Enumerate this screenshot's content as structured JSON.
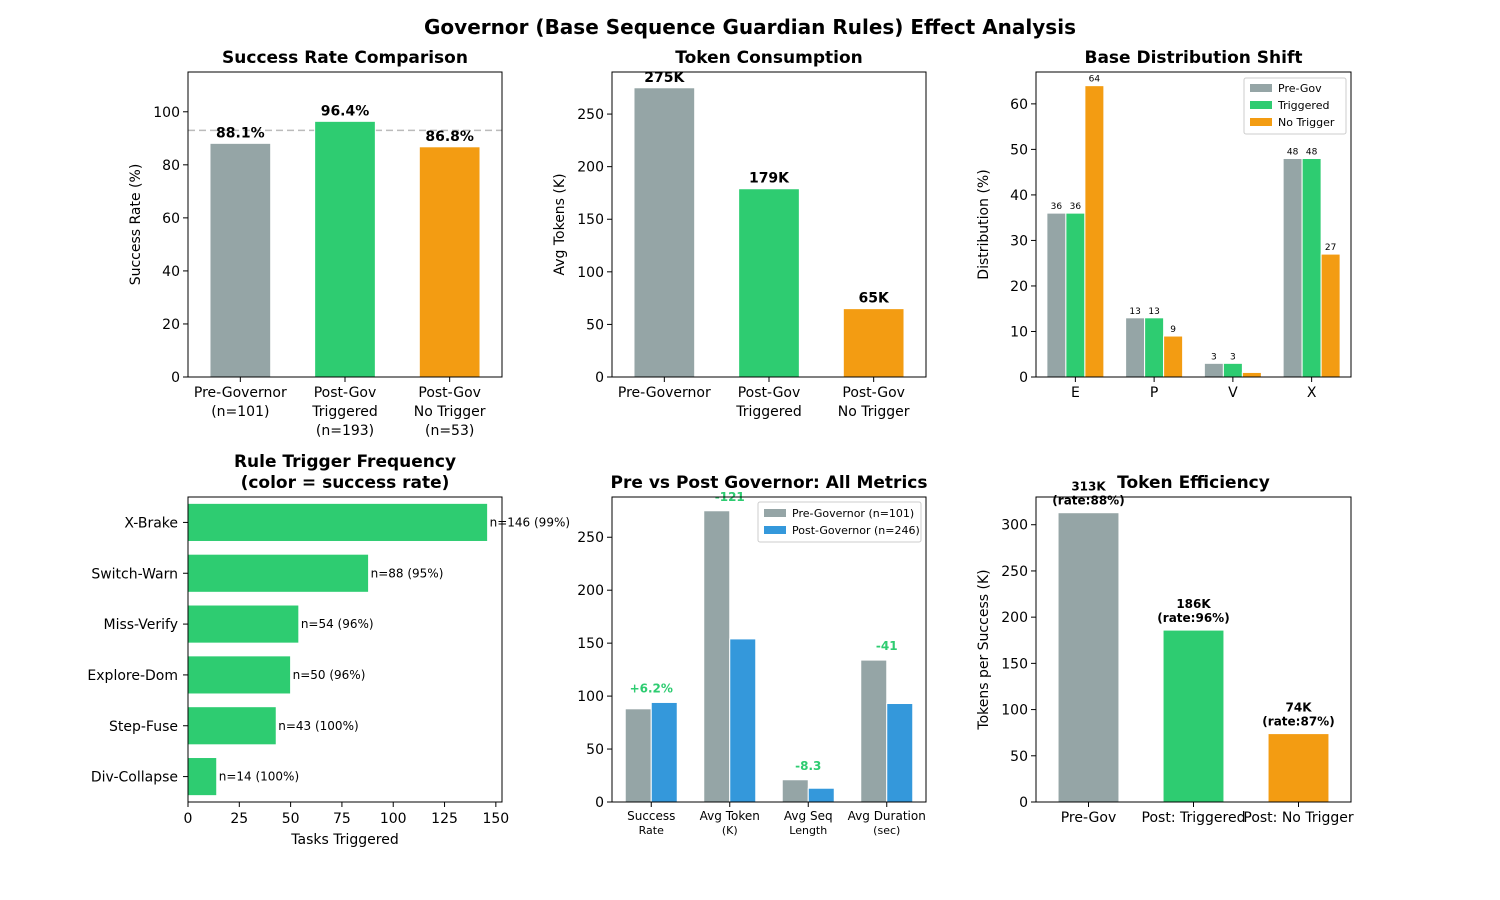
{
  "suptitle": "Governor (Base Sequence Guardian Rules) Effect Analysis",
  "colors": {
    "pre": "#95a5a6",
    "triggered": "#2ecc71",
    "no_trigger": "#f39c12",
    "post": "#3498db",
    "ref_line": "#bbbbbb"
  },
  "chart_data": [
    {
      "id": "success",
      "type": "bar",
      "title": "Success Rate Comparison",
      "ylabel": "Success Rate (%)",
      "xlabel": "",
      "ylim": [
        0,
        115
      ],
      "yticks": [
        0,
        20,
        40,
        60,
        80,
        100
      ],
      "categories": [
        [
          "Pre-Governor",
          "(n=101)"
        ],
        [
          "Post-Gov",
          "Triggered",
          "(n=193)"
        ],
        [
          "Post-Gov",
          "No Trigger",
          "(n=53)"
        ]
      ],
      "values": [
        88.1,
        96.4,
        86.8
      ],
      "labels": [
        "88.1%",
        "96.4%",
        "86.8%"
      ],
      "bar_colors": [
        "#95a5a6",
        "#2ecc71",
        "#f39c12"
      ],
      "ref_line": 93
    },
    {
      "id": "tokens",
      "type": "bar",
      "title": "Token Consumption",
      "ylabel": "Avg Tokens (K)",
      "xlabel": "",
      "ylim": [
        0,
        290
      ],
      "yticks": [
        0,
        50,
        100,
        150,
        200,
        250
      ],
      "categories": [
        [
          "Pre-Governor"
        ],
        [
          "Post-Gov",
          "Triggered"
        ],
        [
          "Post-Gov",
          "No Trigger"
        ]
      ],
      "values": [
        275,
        179,
        65
      ],
      "labels": [
        "275K",
        "179K",
        "65K"
      ],
      "bar_colors": [
        "#95a5a6",
        "#2ecc71",
        "#f39c12"
      ]
    },
    {
      "id": "basedist",
      "type": "bar",
      "title": "Base Distribution Shift",
      "ylabel": "Distribution (%)",
      "xlabel": "",
      "ylim": [
        0,
        67
      ],
      "yticks": [
        0,
        10,
        20,
        30,
        40,
        50,
        60
      ],
      "categories": [
        "E",
        "P",
        "V",
        "X"
      ],
      "legend_position": "upper-right",
      "series": [
        {
          "name": "Pre-Gov",
          "color": "#95a5a6",
          "values": [
            36,
            13,
            3,
            48
          ],
          "labels": [
            "36",
            "13",
            "3",
            "48"
          ]
        },
        {
          "name": "Triggered",
          "color": "#2ecc71",
          "values": [
            36,
            13,
            3,
            48
          ],
          "labels": [
            "36",
            "13",
            "3",
            "48"
          ]
        },
        {
          "name": "No Trigger",
          "color": "#f39c12",
          "values": [
            64,
            9,
            1,
            27
          ],
          "labels": [
            "64",
            "9",
            "",
            "27"
          ]
        }
      ]
    },
    {
      "id": "rules",
      "type": "barh",
      "title": [
        "Rule Trigger Frequency",
        "(color = success rate)"
      ],
      "xlabel": "Tasks Triggered",
      "ylabel": "",
      "xlim": [
        0,
        153
      ],
      "xticks": [
        0,
        25,
        50,
        75,
        100,
        125,
        150
      ],
      "categories": [
        "X-Brake",
        "Switch-Warn",
        "Miss-Verify",
        "Explore-Dom",
        "Step-Fuse",
        "Div-Collapse"
      ],
      "values": [
        146,
        88,
        54,
        50,
        43,
        14
      ],
      "labels": [
        "n=146 (99%)",
        "n=88 (95%)",
        "n=54 (96%)",
        "n=50 (96%)",
        "n=43 (100%)",
        "n=14 (100%)"
      ],
      "bar_colors": [
        "#2ecc71",
        "#2ecc71",
        "#2ecc71",
        "#2ecc71",
        "#2ecc71",
        "#2ecc71"
      ]
    },
    {
      "id": "metrics",
      "type": "bar",
      "title": "Pre vs Post Governor: All Metrics",
      "xlabel": "",
      "ylabel": "",
      "ylim": [
        0,
        288
      ],
      "yticks": [
        0,
        50,
        100,
        150,
        200,
        250
      ],
      "categories": [
        [
          "Success",
          "Rate"
        ],
        [
          "Avg Token",
          "(K)"
        ],
        [
          "Avg Seq",
          "Length"
        ],
        [
          "Avg Duration",
          "(sec)"
        ]
      ],
      "legend_position": "upper-right",
      "series": [
        {
          "name": "Pre-Governor (n=101)",
          "color": "#95a5a6",
          "values": [
            88,
            275,
            21,
            134
          ]
        },
        {
          "name": "Post-Governor (n=246)",
          "color": "#3498db",
          "values": [
            94,
            154,
            13,
            93
          ]
        }
      ],
      "deltas": [
        "+6.2%",
        "-121",
        "-8.3",
        "-41"
      ],
      "delta_color": "#2ecc71"
    },
    {
      "id": "efficiency",
      "type": "bar",
      "title": "Token Efficiency",
      "ylabel": "Tokens per Success (K)",
      "xlabel": "",
      "ylim": [
        0,
        330
      ],
      "yticks": [
        0,
        50,
        100,
        150,
        200,
        250,
        300
      ],
      "categories": [
        [
          "Pre-Gov"
        ],
        [
          "Post: Triggered"
        ],
        [
          "Post: No Trigger"
        ]
      ],
      "values": [
        313,
        186,
        74
      ],
      "labels": [
        [
          "313K",
          "(rate:88%)"
        ],
        [
          "186K",
          "(rate:96%)"
        ],
        [
          "74K",
          "(rate:87%)"
        ]
      ],
      "bar_colors": [
        "#95a5a6",
        "#2ecc71",
        "#f39c12"
      ]
    }
  ]
}
